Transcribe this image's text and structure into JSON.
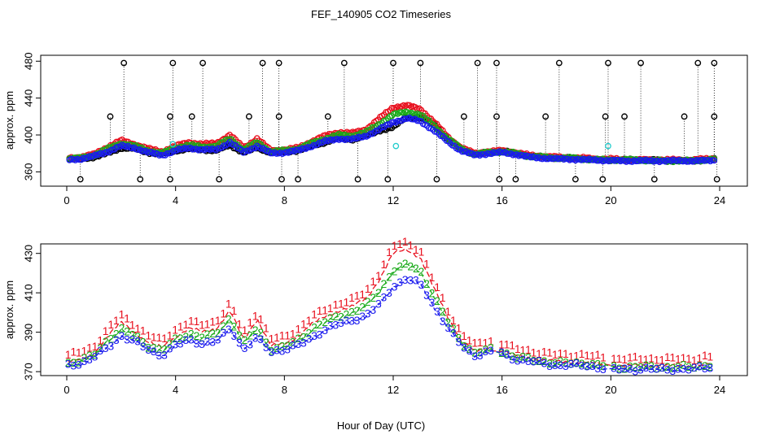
{
  "title": "FEF_140905  CO2 Timeseries",
  "xlabel": "Hour of Day (UTC)",
  "colors": {
    "black": "#000000",
    "red": "#e8101e",
    "green": "#1aaa1a",
    "blue": "#1a1aee",
    "cyan": "#22cccc"
  },
  "chart_data": [
    {
      "type": "scatter",
      "name": "top-panel",
      "ylabel": "approx. ppm",
      "xlim": [
        0,
        24
      ],
      "ylim": [
        348,
        482
      ],
      "xticks": [
        0,
        4,
        8,
        12,
        16,
        20,
        24
      ],
      "yticks": [
        360,
        400,
        440,
        480
      ],
      "spikes_high": [
        2.1,
        3.9,
        5.0,
        7.2,
        7.8,
        10.2,
        12.0,
        13.0,
        15.1,
        15.8,
        18.1,
        19.9,
        21.1,
        23.2,
        23.8
      ],
      "spikes_mid": [
        1.6,
        3.8,
        4.6,
        6.7,
        7.8,
        9.6,
        12.9,
        14.6,
        15.8,
        17.6,
        19.8,
        20.5,
        22.7,
        23.8
      ],
      "spikes_low": [
        0.5,
        2.7,
        3.8,
        5.6,
        7.9,
        8.5,
        10.7,
        11.8,
        13.6,
        15.9,
        16.5,
        18.7,
        19.7,
        21.6,
        23.9
      ],
      "series": [
        {
          "name": "black",
          "x": [
            0,
            0.5,
            1,
            1.5,
            2,
            2.5,
            3,
            3.5,
            4,
            4.5,
            5,
            5.5,
            6,
            6.5,
            7,
            7.5,
            8,
            8.5,
            9,
            9.5,
            10,
            10.5,
            11,
            11.5,
            12,
            12.5,
            13,
            13.5,
            14,
            14.5,
            15,
            15.5,
            16,
            16.5,
            17,
            17.5,
            18,
            18.5,
            19,
            19.5,
            20,
            20.5,
            21,
            21.5,
            22,
            22.5,
            23,
            23.5,
            24
          ],
          "y": [
            374,
            374,
            376,
            380,
            386,
            385,
            381,
            379,
            383,
            385,
            384,
            383,
            389,
            381,
            386,
            381,
            382,
            383,
            388,
            392,
            397,
            395,
            399,
            405,
            408,
            420,
            418,
            412,
            395,
            385,
            379,
            381,
            383,
            380,
            377,
            376,
            375,
            375,
            374,
            373,
            373,
            373,
            373,
            373,
            372,
            372,
            372,
            373,
            374
          ]
        },
        {
          "name": "red",
          "x": [
            0,
            0.5,
            1,
            1.5,
            2,
            2.5,
            3,
            3.5,
            4,
            4.5,
            5,
            5.5,
            6,
            6.5,
            7,
            7.5,
            8,
            8.5,
            9,
            9.5,
            10,
            10.5,
            11,
            11.5,
            12,
            12.5,
            13,
            13.5,
            14,
            14.5,
            15,
            15.5,
            16,
            16.5,
            17,
            17.5,
            18,
            18.5,
            19,
            19.5,
            20,
            20.5,
            21,
            21.5,
            22,
            22.5,
            23,
            23.5,
            24
          ],
          "y": [
            375,
            376,
            379,
            387,
            394,
            390,
            385,
            382,
            388,
            392,
            390,
            391,
            400,
            386,
            396,
            383,
            384,
            386,
            393,
            399,
            403,
            402,
            406,
            418,
            430,
            432,
            428,
            414,
            398,
            386,
            380,
            382,
            383,
            381,
            378,
            377,
            376,
            375,
            375,
            374,
            374,
            373,
            373,
            373,
            373,
            373,
            373,
            374,
            375
          ]
        },
        {
          "name": "green",
          "x": [
            0,
            0.5,
            1,
            1.5,
            2,
            2.5,
            3,
            3.5,
            4,
            4.5,
            5,
            5.5,
            6,
            6.5,
            7,
            7.5,
            8,
            8.5,
            9,
            9.5,
            10,
            10.5,
            11,
            11.5,
            12,
            12.5,
            13,
            13.5,
            14,
            14.5,
            15,
            15.5,
            16,
            16.5,
            17,
            17.5,
            18,
            18.5,
            19,
            19.5,
            20,
            20.5,
            21,
            21.5,
            22,
            22.5,
            23,
            23.5,
            24
          ],
          "y": [
            374,
            375,
            378,
            385,
            391,
            388,
            383,
            380,
            386,
            389,
            387,
            388,
            396,
            384,
            392,
            382,
            383,
            385,
            391,
            396,
            400,
            399,
            403,
            412,
            422,
            425,
            422,
            410,
            396,
            385,
            379,
            381,
            382,
            380,
            377,
            376,
            375,
            375,
            374,
            373,
            373,
            373,
            373,
            372,
            372,
            372,
            372,
            373,
            374
          ]
        },
        {
          "name": "blue",
          "x": [
            0,
            0.5,
            1,
            1.5,
            2,
            2.5,
            3,
            3.5,
            4,
            4.5,
            5,
            5.5,
            6,
            6.5,
            7,
            7.5,
            8,
            8.5,
            9,
            9.5,
            10,
            10.5,
            11,
            11.5,
            12,
            12.5,
            13,
            13.5,
            14,
            14.5,
            15,
            15.5,
            16,
            16.5,
            17,
            17.5,
            18,
            18.5,
            19,
            19.5,
            20,
            20.5,
            21,
            21.5,
            22,
            22.5,
            23,
            23.5,
            24
          ],
          "y": [
            373,
            374,
            377,
            382,
            388,
            386,
            381,
            378,
            383,
            386,
            384,
            384,
            392,
            381,
            388,
            380,
            381,
            383,
            388,
            393,
            396,
            395,
            399,
            406,
            414,
            418,
            415,
            405,
            393,
            383,
            378,
            380,
            381,
            379,
            376,
            375,
            374,
            374,
            373,
            373,
            372,
            372,
            372,
            372,
            372,
            372,
            372,
            372,
            373
          ]
        },
        {
          "name": "cyan",
          "x": [
            3.9,
            12.1,
            19.9
          ],
          "y": [
            390,
            388,
            388
          ]
        }
      ]
    },
    {
      "type": "line",
      "name": "bottom-panel",
      "ylabel": "approx. ppm",
      "xlim": [
        0,
        24
      ],
      "ylim": [
        368,
        434
      ],
      "xticks": [
        0,
        4,
        8,
        12,
        16,
        20,
        24
      ],
      "yticks": [
        370,
        390,
        410,
        430
      ],
      "series": [
        {
          "name": "1",
          "marker": "1",
          "x": [
            0,
            0.5,
            1,
            1.5,
            2,
            2.5,
            3,
            3.5,
            4,
            4.5,
            5,
            5.5,
            6,
            6.5,
            7,
            7.5,
            8,
            8.5,
            9,
            9.5,
            10,
            10.5,
            11,
            11.5,
            12,
            12.5,
            13,
            13.5,
            14,
            14.5,
            15,
            15.5,
            16,
            16.5,
            17,
            17.5,
            18,
            18.5,
            19,
            19.5,
            20,
            20.5,
            21,
            21.5,
            22,
            22.5,
            23,
            23.5
          ],
          "y": [
            375,
            376,
            379,
            388,
            395,
            390,
            385,
            382,
            388,
            392,
            390,
            392,
            401,
            386,
            397,
            383,
            384,
            388,
            394,
            398,
            401,
            403,
            407,
            417,
            430,
            432,
            428,
            412,
            398,
            386,
            380,
            382,
            381,
            378,
            377,
            376,
            375,
            375,
            375,
            374,
            373,
            373,
            373,
            373,
            373,
            373,
            373,
            374
          ]
        },
        {
          "name": "2",
          "marker": "2",
          "x": [
            0,
            0.5,
            1,
            1.5,
            2,
            2.5,
            3,
            3.5,
            4,
            4.5,
            5,
            5.5,
            6,
            6.5,
            7,
            7.5,
            8,
            8.5,
            9,
            9.5,
            10,
            10.5,
            11,
            11.5,
            12,
            12.5,
            13,
            13.5,
            14,
            14.5,
            15,
            15.5,
            16,
            16.5,
            17,
            17.5,
            18,
            18.5,
            19,
            19.5,
            20,
            20.5,
            21,
            21.5,
            22,
            22.5,
            23,
            23.5
          ],
          "y": [
            374,
            375,
            378,
            386,
            391,
            388,
            383,
            380,
            386,
            389,
            387,
            389,
            397,
            384,
            392,
            381,
            382,
            386,
            391,
            395,
            398,
            400,
            403,
            411,
            421,
            424,
            421,
            408,
            395,
            385,
            379,
            381,
            380,
            377,
            376,
            375,
            374,
            374,
            374,
            373,
            372,
            372,
            372,
            372,
            372,
            372,
            372,
            373
          ]
        },
        {
          "name": "3",
          "marker": "3",
          "x": [
            0,
            0.5,
            1,
            1.5,
            2,
            2.5,
            3,
            3.5,
            4,
            4.5,
            5,
            5.5,
            6,
            6.5,
            7,
            7.5,
            8,
            8.5,
            9,
            9.5,
            10,
            10.5,
            11,
            11.5,
            12,
            12.5,
            13,
            13.5,
            14,
            14.5,
            15,
            15.5,
            16,
            16.5,
            17,
            17.5,
            18,
            18.5,
            19,
            19.5,
            20,
            20.5,
            21,
            21.5,
            22,
            22.5,
            23,
            23.5
          ],
          "y": [
            373,
            374,
            377,
            382,
            388,
            385,
            381,
            378,
            383,
            386,
            384,
            385,
            392,
            381,
            387,
            380,
            381,
            383,
            387,
            391,
            394,
            396,
            398,
            404,
            413,
            417,
            414,
            403,
            392,
            383,
            378,
            380,
            379,
            376,
            375,
            374,
            373,
            373,
            373,
            372,
            371,
            371,
            371,
            371,
            371,
            371,
            371,
            372
          ]
        }
      ]
    }
  ]
}
